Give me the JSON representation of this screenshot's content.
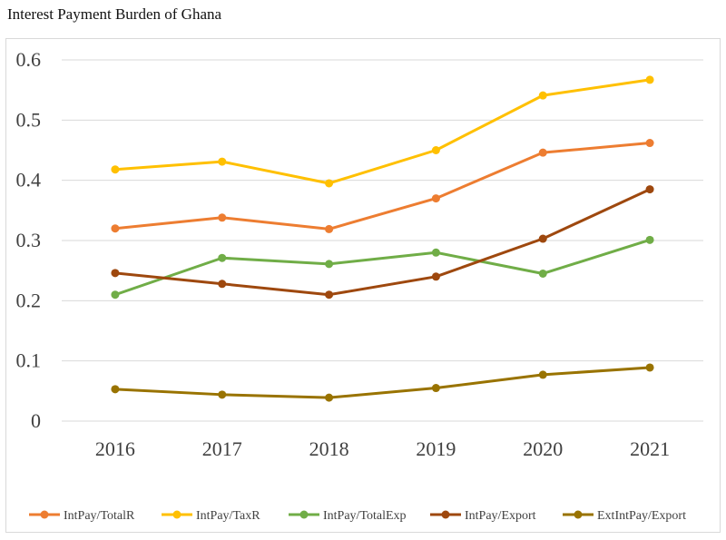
{
  "title": "Interest Payment Burden of Ghana",
  "chart_data": {
    "type": "line",
    "x": [
      "2016",
      "2017",
      "2018",
      "2019",
      "2020",
      "2021"
    ],
    "yticks": [
      "0",
      "0.1",
      "0.2",
      "0.3",
      "0.4",
      "0.5",
      "0.6"
    ],
    "ylim": [
      0,
      0.6
    ],
    "grid": true,
    "legend_position": "bottom",
    "series": [
      {
        "name": "IntPay/TotalR",
        "color": "#ED7D31",
        "values": [
          0.32,
          0.338,
          0.319,
          0.37,
          0.446,
          0.462
        ]
      },
      {
        "name": "IntPay/TaxR",
        "color": "#FFC000",
        "values": [
          0.418,
          0.431,
          0.395,
          0.45,
          0.541,
          0.567
        ]
      },
      {
        "name": "IntPay/TotalExp",
        "color": "#70AD47",
        "values": [
          0.21,
          0.271,
          0.261,
          0.28,
          0.245,
          0.301
        ]
      },
      {
        "name": "IntPay/Export",
        "color": "#9E480E",
        "values": [
          0.246,
          0.228,
          0.21,
          0.24,
          0.303,
          0.385
        ]
      },
      {
        "name": "ExtIntPay/Export",
        "color": "#997300",
        "values": [
          0.053,
          0.044,
          0.039,
          0.055,
          0.077,
          0.089
        ]
      }
    ]
  }
}
